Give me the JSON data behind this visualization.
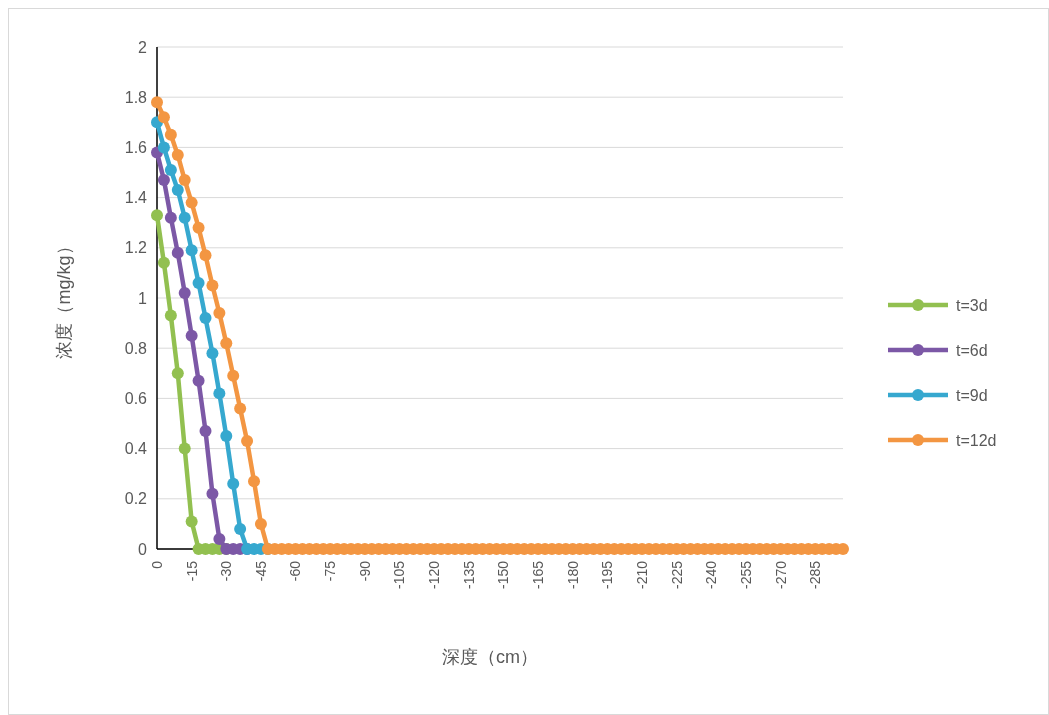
{
  "chart_data": {
    "type": "line",
    "xlabel": "深度（cm）",
    "ylabel": "浓度（mg/kg）",
    "x": [
      0,
      -3,
      -6,
      -9,
      -12,
      -15,
      -18,
      -21,
      -24,
      -27,
      -30,
      -33,
      -36,
      -39,
      -42,
      -45,
      -48,
      -51,
      -54,
      -57,
      -60,
      -63,
      -66,
      -69,
      -72,
      -75,
      -78,
      -81,
      -84,
      -87,
      -90,
      -93,
      -96,
      -99,
      -102,
      -105,
      -108,
      -111,
      -114,
      -117,
      -120,
      -123,
      -126,
      -129,
      -132,
      -135,
      -138,
      -141,
      -144,
      -147,
      -150,
      -153,
      -156,
      -159,
      -162,
      -165,
      -168,
      -171,
      -174,
      -177,
      -180,
      -183,
      -186,
      -189,
      -192,
      -195,
      -198,
      -201,
      -204,
      -207,
      -210,
      -213,
      -216,
      -219,
      -222,
      -225,
      -228,
      -231,
      -234,
      -237,
      -240,
      -243,
      -246,
      -249,
      -252,
      -255,
      -258,
      -261,
      -264,
      -267,
      -270,
      -273,
      -276,
      -279,
      -282,
      -285,
      -288,
      -291,
      -294,
      -297
    ],
    "xlim": [
      0,
      -297
    ],
    "xticks": [
      0,
      -15,
      -30,
      -45,
      -60,
      -75,
      -90,
      -105,
      -120,
      -135,
      -150,
      -165,
      -180,
      -195,
      -210,
      -225,
      -240,
      -255,
      -270,
      -285
    ],
    "ylim": [
      0,
      2
    ],
    "yticks": [
      0,
      0.2,
      0.4,
      0.6,
      0.8,
      1,
      1.2,
      1.4,
      1.6,
      1.8,
      2
    ],
    "grid": "y",
    "legend": "right",
    "marker": "circle",
    "line_style": "solid",
    "series": [
      {
        "name": "t=3d",
        "color": "#92c050",
        "values": [
          1.33,
          1.14,
          0.93,
          0.7,
          0.4,
          0.11,
          0,
          0,
          0,
          0,
          0,
          null,
          null,
          null,
          null,
          null,
          null,
          null,
          null,
          null,
          null,
          null,
          null,
          null,
          null,
          null,
          null,
          null,
          null,
          null,
          null,
          null,
          null,
          null,
          null,
          null,
          null,
          null,
          null,
          null,
          null,
          null,
          null,
          null,
          null,
          null,
          null,
          null,
          null,
          null,
          null,
          null,
          null,
          null,
          null,
          null,
          null,
          null,
          null,
          null,
          null,
          null,
          null,
          null,
          null,
          null,
          null,
          null,
          null,
          null,
          null,
          null,
          null,
          null,
          null,
          null,
          null,
          null,
          null,
          null,
          null,
          null,
          null,
          null,
          null,
          null,
          null,
          null,
          null,
          null,
          null,
          null,
          null,
          null,
          null,
          null,
          null,
          null,
          null,
          null
        ]
      },
      {
        "name": "t=6d",
        "color": "#7c58a6",
        "values": [
          1.58,
          1.47,
          1.32,
          1.18,
          1.02,
          0.85,
          0.67,
          0.47,
          0.22,
          0.04,
          0,
          0,
          0,
          0,
          null,
          null,
          null,
          null,
          null,
          null,
          null,
          null,
          null,
          null,
          null,
          null,
          null,
          null,
          null,
          null,
          null,
          null,
          null,
          null,
          null,
          null,
          null,
          null,
          null,
          null,
          null,
          null,
          null,
          null,
          null,
          null,
          null,
          null,
          null,
          null,
          null,
          null,
          null,
          null,
          null,
          null,
          null,
          null,
          null,
          null,
          null,
          null,
          null,
          null,
          null,
          null,
          null,
          null,
          null,
          null,
          null,
          null,
          null,
          null,
          null,
          null,
          null,
          null,
          null,
          null,
          null,
          null,
          null,
          null,
          null,
          null,
          null,
          null,
          null,
          null,
          null,
          null,
          null,
          null,
          null,
          null,
          null,
          null,
          null,
          null
        ]
      },
      {
        "name": "t=9d",
        "color": "#36a8cf",
        "values": [
          1.7,
          1.6,
          1.51,
          1.43,
          1.32,
          1.19,
          1.06,
          0.92,
          0.78,
          0.62,
          0.45,
          0.26,
          0.08,
          0,
          0,
          0,
          0,
          null,
          null,
          null,
          null,
          null,
          null,
          null,
          null,
          null,
          null,
          null,
          null,
          null,
          null,
          null,
          null,
          null,
          null,
          null,
          null,
          null,
          null,
          null,
          null,
          null,
          null,
          null,
          null,
          null,
          null,
          null,
          null,
          null,
          null,
          null,
          null,
          null,
          null,
          null,
          null,
          null,
          null,
          null,
          null,
          null,
          null,
          null,
          null,
          null,
          null,
          null,
          null,
          null,
          null,
          null,
          null,
          null,
          null,
          null,
          null,
          null,
          null,
          null,
          null,
          null,
          null,
          null,
          null,
          null,
          null,
          null,
          null,
          null,
          null,
          null,
          null,
          null,
          null,
          null,
          null,
          null,
          null,
          null
        ]
      },
      {
        "name": "t=12d",
        "color": "#f39642",
        "values": [
          1.78,
          1.72,
          1.65,
          1.57,
          1.47,
          1.38,
          1.28,
          1.17,
          1.05,
          0.94,
          0.82,
          0.69,
          0.56,
          0.43,
          0.27,
          0.1,
          0,
          0,
          0,
          0,
          0,
          0,
          0,
          0,
          0,
          0,
          0,
          0,
          0,
          0,
          0,
          0,
          0,
          0,
          0,
          0,
          0,
          0,
          0,
          0,
          0,
          0,
          0,
          0,
          0,
          0,
          0,
          0,
          0,
          0,
          0,
          0,
          0,
          0,
          0,
          0,
          0,
          0,
          0,
          0,
          0,
          0,
          0,
          0,
          0,
          0,
          0,
          0,
          0,
          0,
          0,
          0,
          0,
          0,
          0,
          0,
          0,
          0,
          0,
          0,
          0,
          0,
          0,
          0,
          0,
          0,
          0,
          0,
          0,
          0,
          0,
          0,
          0,
          0,
          0,
          0,
          0,
          0,
          0,
          0
        ]
      }
    ]
  }
}
